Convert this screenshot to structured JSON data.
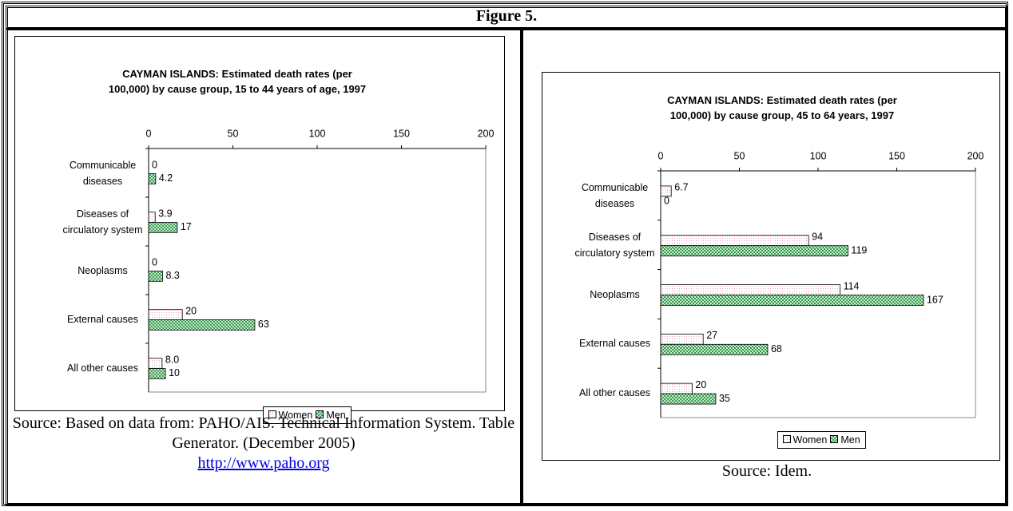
{
  "figure_title": "Figure 5.",
  "sources": [
    {
      "text": "Source: Based on data from: PAHO/AIS. Technical Information System. Table Generator. (December 2005)",
      "link": "http://www.paho.org"
    },
    {
      "text": "Source: Idem."
    }
  ],
  "chart_data": [
    {
      "type": "bar",
      "orientation": "horizontal",
      "title": "CAYMAN ISLANDS: Estimated death rates (per 100,000) by cause group, 15 to 44 years of age, 1997",
      "categories": [
        "Communicable diseases",
        "Diseases of circulatory system",
        "Neoplasms",
        "External causes",
        "All other causes"
      ],
      "series": [
        {
          "name": "Women",
          "color": "#e8a0b4",
          "values": [
            0,
            3.9,
            0,
            20,
            8
          ],
          "value_labels": [
            "0",
            "3.9",
            "0",
            "20",
            "8.0"
          ]
        },
        {
          "name": "Men",
          "color": "#3a9a50",
          "values": [
            4.2,
            17,
            8.3,
            63,
            10
          ]
        }
      ],
      "xlim": [
        0,
        200
      ],
      "xticks": [
        0,
        50,
        100,
        150,
        200
      ],
      "legend": "bottom"
    },
    {
      "type": "bar",
      "orientation": "horizontal",
      "title": "CAYMAN ISLANDS: Estimated death rates (per 100,000) by cause group, 45 to 64 years, 1997",
      "categories": [
        "Communicable diseases",
        "Diseases of circulatory system",
        "Neoplasms",
        "External causes",
        "All other causes"
      ],
      "series": [
        {
          "name": "Women",
          "color": "#e8a0b4",
          "values": [
            6.7,
            94,
            114,
            27,
            20
          ]
        },
        {
          "name": "Men",
          "color": "#3a9a50",
          "values": [
            0,
            119,
            167,
            68,
            35
          ]
        }
      ],
      "xlim": [
        0,
        200
      ],
      "xticks": [
        0,
        50,
        100,
        150,
        200
      ],
      "legend": "bottom"
    }
  ]
}
